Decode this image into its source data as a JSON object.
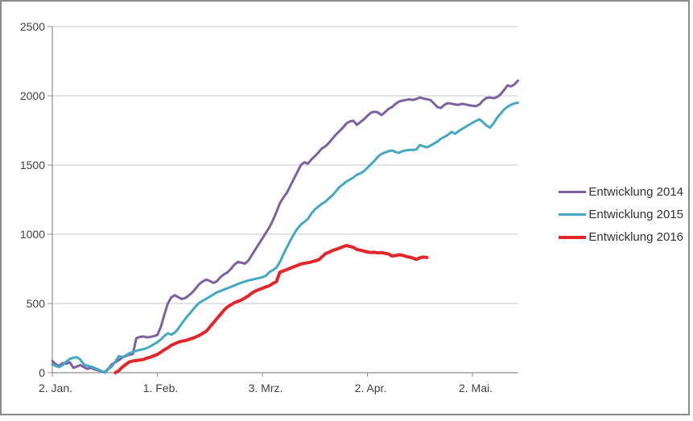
{
  "chart": {
    "background": "#ffffff",
    "border_color": "#8a8a8a",
    "axis_color": "#8e8e8e",
    "gridline_color": "#c9c9c9",
    "label_color": "#3f3f3f"
  },
  "chart_data": {
    "type": "line",
    "title": "",
    "x_axis": {
      "tick_labels": [
        "2. Jan.",
        "1. Feb.",
        "3. Mrz.",
        "2. Apr.",
        "2. Mai."
      ],
      "tick_days": [
        0,
        30,
        60,
        90,
        120
      ],
      "start_day": 0,
      "end_day": 133,
      "unit": "days since 2. Jan."
    },
    "y_axis": {
      "ticks": [
        0,
        500,
        1000,
        1500,
        2000,
        2500
      ],
      "min": 0,
      "max": 2500,
      "gridlines": true
    },
    "legend": {
      "position": "right"
    },
    "series": [
      {
        "name": "Entwicklung 2014",
        "color": "#7c61a1",
        "start_day": 0,
        "values": [
          85,
          60,
          50,
          70,
          65,
          75,
          35,
          45,
          55,
          40,
          28,
          35,
          25,
          18,
          10,
          5,
          30,
          60,
          75,
          90,
          110,
          120,
          130,
          135,
          250,
          258,
          262,
          255,
          258,
          264,
          272,
          330,
          420,
          500,
          545,
          560,
          545,
          532,
          540,
          558,
          580,
          610,
          640,
          660,
          672,
          662,
          648,
          660,
          690,
          710,
          724,
          750,
          780,
          800,
          795,
          788,
          810,
          850,
          890,
          930,
          970,
          1010,
          1050,
          1100,
          1160,
          1225,
          1265,
          1300,
          1350,
          1400,
          1450,
          1500,
          1520,
          1510,
          1540,
          1565,
          1590,
          1620,
          1635,
          1660,
          1690,
          1720,
          1745,
          1770,
          1800,
          1815,
          1820,
          1790,
          1810,
          1830,
          1855,
          1878,
          1885,
          1880,
          1860,
          1880,
          1905,
          1918,
          1940,
          1958,
          1965,
          1970,
          1975,
          1970,
          1978,
          1988,
          1980,
          1975,
          1970,
          1945,
          1918,
          1912,
          1935,
          1947,
          1943,
          1938,
          1935,
          1942,
          1938,
          1932,
          1928,
          1925,
          1938,
          1965,
          1985,
          1988,
          1982,
          1990,
          2010,
          2040,
          2075,
          2068,
          2082,
          2110
        ]
      },
      {
        "name": "Entwicklung 2015",
        "color": "#44a8c4",
        "start_day": 0,
        "values": [
          60,
          48,
          40,
          55,
          80,
          100,
          108,
          112,
          95,
          60,
          50,
          45,
          35,
          25,
          12,
          0,
          25,
          45,
          80,
          120,
          112,
          125,
          140,
          150,
          158,
          165,
          170,
          178,
          190,
          205,
          220,
          240,
          265,
          285,
          275,
          290,
          320,
          355,
          390,
          420,
          450,
          480,
          505,
          520,
          535,
          550,
          565,
          580,
          590,
          600,
          610,
          620,
          630,
          640,
          650,
          658,
          666,
          672,
          678,
          684,
          690,
          700,
          727,
          740,
          760,
          800,
          855,
          905,
          955,
          1000,
          1040,
          1070,
          1090,
          1110,
          1150,
          1180,
          1200,
          1220,
          1235,
          1260,
          1280,
          1310,
          1340,
          1360,
          1380,
          1395,
          1410,
          1430,
          1440,
          1455,
          1480,
          1505,
          1530,
          1560,
          1580,
          1590,
          1600,
          1605,
          1595,
          1588,
          1600,
          1605,
          1610,
          1608,
          1612,
          1645,
          1635,
          1628,
          1640,
          1655,
          1670,
          1690,
          1703,
          1718,
          1740,
          1725,
          1745,
          1760,
          1775,
          1790,
          1805,
          1818,
          1830,
          1810,
          1785,
          1770,
          1800,
          1840,
          1870,
          1900,
          1920,
          1935,
          1945,
          1950
        ]
      },
      {
        "name": "Entwicklung 2016",
        "color": "#e2262c",
        "start_day": 18,
        "values": [
          0,
          15,
          40,
          60,
          78,
          85,
          88,
          92,
          95,
          105,
          112,
          122,
          132,
          148,
          165,
          180,
          198,
          210,
          220,
          228,
          232,
          240,
          248,
          258,
          270,
          285,
          300,
          330,
          360,
          390,
          420,
          450,
          475,
          490,
          505,
          515,
          525,
          540,
          555,
          575,
          590,
          600,
          610,
          620,
          628,
          645,
          657,
          727,
          735,
          745,
          755,
          765,
          775,
          785,
          790,
          795,
          800,
          808,
          814,
          835,
          860,
          870,
          882,
          890,
          900,
          910,
          918,
          912,
          905,
          890,
          885,
          878,
          872,
          868,
          870,
          865,
          868,
          862,
          858,
          843,
          846,
          852,
          848,
          840,
          835,
          828,
          818,
          830,
          835,
          832
        ]
      }
    ]
  }
}
